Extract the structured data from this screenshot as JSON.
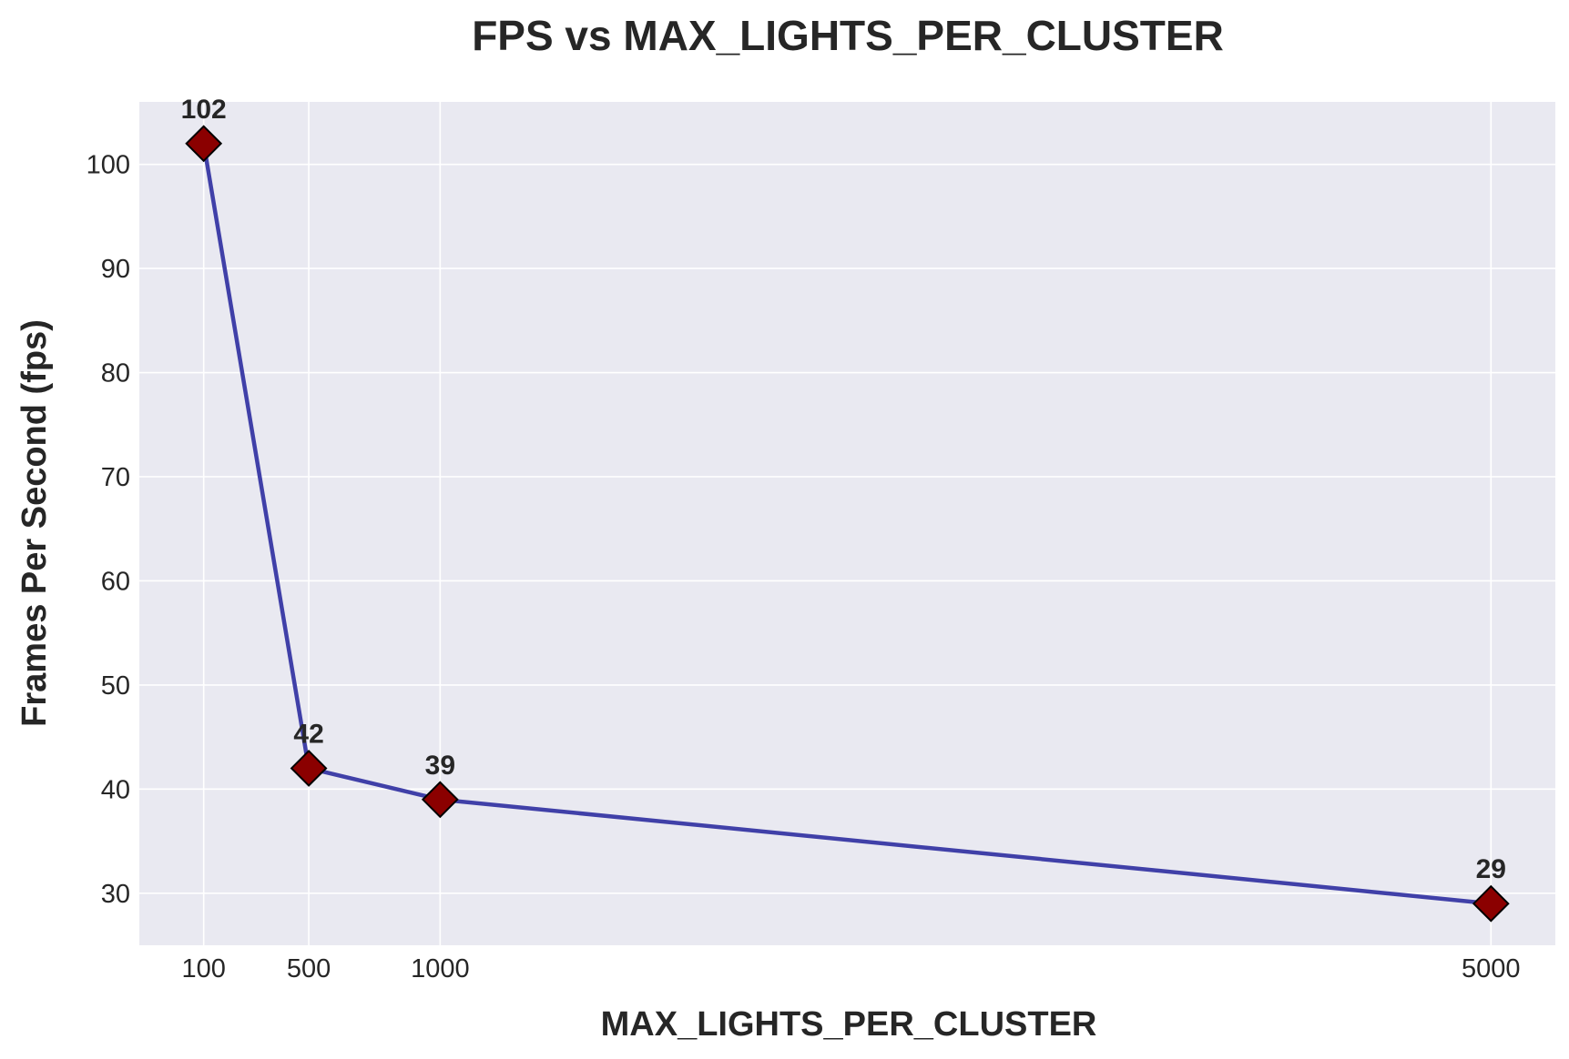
{
  "chart_data": {
    "type": "line",
    "title": "FPS vs MAX_LIGHTS_PER_CLUSTER",
    "xlabel": "MAX_LIGHTS_PER_CLUSTER",
    "ylabel": "Frames Per Second (fps)",
    "x": [
      100,
      500,
      1000,
      5000
    ],
    "x_ticks": [
      100,
      500,
      1000,
      5000
    ],
    "xlim": [
      -145,
      5245
    ],
    "ylim": [
      25,
      106
    ],
    "y_ticks": [
      30,
      40,
      50,
      60,
      70,
      80,
      90,
      100
    ],
    "grid": true,
    "series": [
      {
        "values": [
          102,
          42,
          39,
          29
        ],
        "data_labels": [
          "102",
          "42",
          "39",
          "29"
        ],
        "line_color": "#4040a8",
        "marker": "diamond",
        "marker_color": "#8b0000",
        "marker_edge_color": "#000000"
      }
    ],
    "colors": {
      "plot_background": "#e9e9f1",
      "grid": "#ffffff",
      "text": "#262626"
    }
  }
}
